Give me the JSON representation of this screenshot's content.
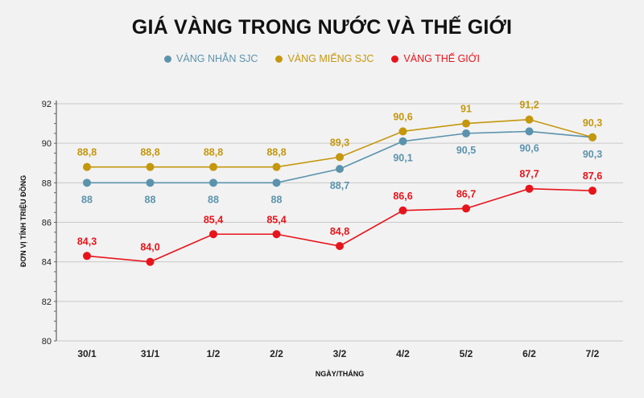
{
  "title": "GIÁ VÀNG TRONG NƯỚC VÀ THẾ GIỚI",
  "colors": {
    "nhan": "#5b93ad",
    "mieng": "#c4970d",
    "thegioi": "#e8141b",
    "grid": "#c8c8c8",
    "background": "#f2f2f2"
  },
  "chart_data": {
    "type": "line",
    "title": "GIÁ VÀNG TRONG NƯỚC VÀ THẾ GIỚI",
    "xlabel": "NGÀY/THÁNG",
    "ylabel": "ĐƠN VỊ TÍNH TRIỆU ĐỒNG",
    "categories": [
      "30/1",
      "31/1",
      "1/2",
      "2/2",
      "3/2",
      "4/2",
      "5/2",
      "6/2",
      "7/2"
    ],
    "ylim": [
      80,
      92
    ],
    "yticks": [
      "80",
      "82",
      "84",
      "86",
      "88",
      "90",
      "92"
    ],
    "grid": true,
    "legend_position": "top-center",
    "series": [
      {
        "name": "VÀNG NHẪN SJC",
        "color": "#5b93ad",
        "values": [
          88,
          88,
          88,
          88,
          88.7,
          90.1,
          90.5,
          90.6,
          90.3
        ],
        "labels": [
          "88",
          "88",
          "88",
          "88",
          "88,7",
          "90,1",
          "90,5",
          "90,6",
          "90,3"
        ],
        "label_position": "below"
      },
      {
        "name": "VÀNG MIẾNG SJC",
        "color": "#c4970d",
        "values": [
          88.8,
          88.8,
          88.8,
          88.8,
          89.3,
          90.6,
          91,
          91.2,
          90.3
        ],
        "labels": [
          "88,8",
          "88,8",
          "88,8",
          "88,8",
          "89,3",
          "90,6",
          "91",
          "91,2",
          "90,3"
        ],
        "label_position": "above"
      },
      {
        "name": "VÀNG THẾ GIỚI",
        "color": "#e8141b",
        "values": [
          84.3,
          84.0,
          85.4,
          85.4,
          84.8,
          86.6,
          86.7,
          87.7,
          87.6
        ],
        "labels": [
          "84,3",
          "84,0",
          "85,4",
          "85,4",
          "84,8",
          "86,6",
          "86,7",
          "87,7",
          "87,6"
        ],
        "label_position": "above"
      }
    ]
  }
}
